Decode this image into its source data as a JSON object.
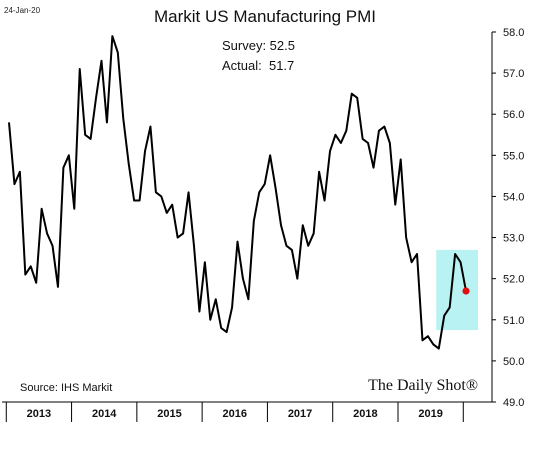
{
  "date_stamp": "24-Jan-20",
  "source": "Source: IHS Markit",
  "brand": "The Daily Shot®",
  "colors": {
    "line": "#000000",
    "highlight_fill": "#7ee8e8",
    "latest_point": "#e01010"
  },
  "chart_data": {
    "type": "line",
    "title": "Markit US Manufacturing PMI",
    "annotations": [
      "Survey: 52.5",
      "Actual:  51.7"
    ],
    "xlabel": "",
    "ylabel": "",
    "ylim": [
      49.0,
      58.0
    ],
    "yticks": [
      "49.0",
      "50.0",
      "51.0",
      "52.0",
      "53.0",
      "54.0",
      "55.0",
      "56.0",
      "57.0",
      "58.0"
    ],
    "years": [
      "2013",
      "2014",
      "2015",
      "2016",
      "2017",
      "2018",
      "2019"
    ],
    "grid": false,
    "y_axis_side": "right",
    "x_start": "2013-01",
    "x_end": "2020-01",
    "series": [
      {
        "x": [
          "2013-01",
          "2013-02",
          "2013-03",
          "2013-04",
          "2013-05",
          "2013-06",
          "2013-07",
          "2013-08",
          "2013-09",
          "2013-10",
          "2013-11",
          "2013-12",
          "2014-01",
          "2014-02",
          "2014-03",
          "2014-04",
          "2014-05",
          "2014-06",
          "2014-07",
          "2014-08",
          "2014-09",
          "2014-10",
          "2014-11",
          "2014-12",
          "2015-01",
          "2015-02",
          "2015-03",
          "2015-04",
          "2015-05",
          "2015-06",
          "2015-07",
          "2015-08",
          "2015-09",
          "2015-10",
          "2015-11",
          "2015-12",
          "2016-01",
          "2016-02",
          "2016-03",
          "2016-04",
          "2016-05",
          "2016-06",
          "2016-07",
          "2016-08",
          "2016-09",
          "2016-10",
          "2016-11",
          "2016-12",
          "2017-01",
          "2017-02",
          "2017-03",
          "2017-04",
          "2017-05",
          "2017-06",
          "2017-07",
          "2017-08",
          "2017-09",
          "2017-10",
          "2017-11",
          "2017-12",
          "2018-01",
          "2018-02",
          "2018-03",
          "2018-04",
          "2018-05",
          "2018-06",
          "2018-07",
          "2018-08",
          "2018-09",
          "2018-10",
          "2018-11",
          "2018-12",
          "2019-01",
          "2019-02",
          "2019-03",
          "2019-04",
          "2019-05",
          "2019-06",
          "2019-07",
          "2019-08",
          "2019-09",
          "2019-10",
          "2019-11",
          "2019-12",
          "2020-01"
        ],
        "values": [
          55.8,
          54.3,
          54.6,
          52.1,
          52.3,
          51.9,
          53.7,
          53.1,
          52.8,
          51.8,
          54.7,
          55.0,
          53.7,
          57.1,
          55.5,
          55.4,
          56.4,
          57.3,
          55.8,
          57.9,
          57.5,
          55.9,
          54.8,
          53.9,
          53.9,
          55.1,
          55.7,
          54.1,
          54.0,
          53.6,
          53.8,
          53.0,
          53.1,
          54.1,
          52.8,
          51.2,
          52.4,
          51.0,
          51.5,
          50.8,
          50.7,
          51.3,
          52.9,
          52.0,
          51.5,
          53.4,
          54.1,
          54.3,
          55.0,
          54.2,
          53.3,
          52.8,
          52.7,
          52.0,
          53.3,
          52.8,
          53.1,
          54.6,
          53.9,
          55.1,
          55.5,
          55.3,
          55.6,
          56.5,
          56.4,
          55.4,
          55.3,
          54.7,
          55.6,
          55.7,
          55.3,
          53.8,
          54.9,
          53.0,
          52.4,
          52.6,
          50.5,
          50.6,
          50.4,
          50.3,
          51.1,
          51.3,
          52.6,
          52.4,
          51.7
        ]
      }
    ]
  }
}
